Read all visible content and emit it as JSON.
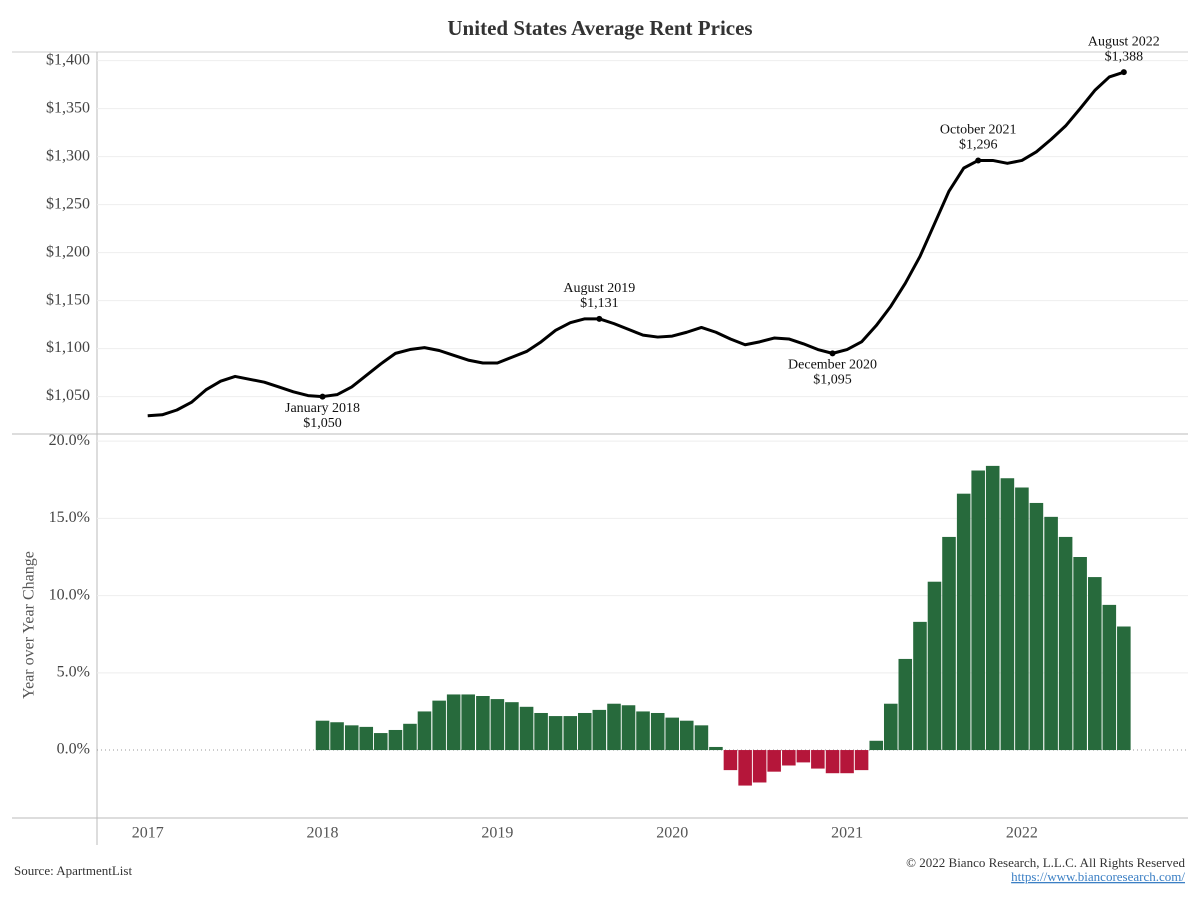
{
  "chart_data": [
    {
      "type": "line",
      "title": "United States Average Rent Prices",
      "color": "#000000",
      "x": [
        2017,
        2017.083,
        2017.167,
        2017.25,
        2017.333,
        2017.417,
        2017.5,
        2017.583,
        2017.667,
        2017.75,
        2017.833,
        2017.917,
        2018,
        2018.083,
        2018.167,
        2018.25,
        2018.333,
        2018.417,
        2018.5,
        2018.583,
        2018.667,
        2018.75,
        2018.833,
        2018.917,
        2019,
        2019.083,
        2019.167,
        2019.25,
        2019.333,
        2019.417,
        2019.5,
        2019.583,
        2019.667,
        2019.75,
        2019.833,
        2019.917,
        2020,
        2020.083,
        2020.167,
        2020.25,
        2020.333,
        2020.417,
        2020.5,
        2020.583,
        2020.667,
        2020.75,
        2020.833,
        2020.917,
        2021,
        2021.083,
        2021.167,
        2021.25,
        2021.333,
        2021.417,
        2021.5,
        2021.583,
        2021.667,
        2021.75,
        2021.833,
        2021.917,
        2022,
        2022.083,
        2022.167,
        2022.25,
        2022.333,
        2022.417,
        2022.5,
        2022.583
      ],
      "values": [
        1030,
        1031,
        1036,
        1044,
        1057,
        1066,
        1071,
        1068,
        1065,
        1060,
        1055,
        1051,
        1050,
        1052,
        1060,
        1072,
        1084,
        1095,
        1099,
        1101,
        1098,
        1093,
        1088,
        1085,
        1085,
        1091,
        1097,
        1107,
        1119,
        1127,
        1131,
        1131,
        1126,
        1120,
        1114,
        1112,
        1113,
        1117,
        1122,
        1117,
        1110,
        1104,
        1107,
        1111,
        1110,
        1105,
        1099,
        1095,
        1099,
        1107,
        1124,
        1144,
        1168,
        1196,
        1230,
        1264,
        1288,
        1296,
        1296,
        1293,
        1296,
        1305,
        1318,
        1332,
        1350,
        1369,
        1383,
        1388
      ],
      "ylim": [
        1011,
        1409
      ],
      "yticks": [
        {
          "value": 1050,
          "label": "$1,050"
        },
        {
          "value": 1100,
          "label": "$1,100"
        },
        {
          "value": 1150,
          "label": "$1,150"
        },
        {
          "value": 1200,
          "label": "$1,200"
        },
        {
          "value": 1250,
          "label": "$1,250"
        },
        {
          "value": 1300,
          "label": "$1,300"
        },
        {
          "value": 1350,
          "label": "$1,350"
        },
        {
          "value": 1400,
          "label": "$1,400"
        }
      ],
      "xlim": [
        2016.71,
        2022.95
      ],
      "grid": true,
      "annotations": [
        {
          "text": "January 2018",
          "x": 2018,
          "value": 1050,
          "value_label": "$1,050",
          "position": "below"
        },
        {
          "text": "August 2019",
          "x": 2019.583,
          "value": 1131,
          "value_label": "$1,131",
          "position": "above"
        },
        {
          "text": "December 2020",
          "x": 2020.917,
          "value": 1095,
          "value_label": "$1,095",
          "position": "below"
        },
        {
          "text": "October 2021",
          "x": 2021.75,
          "value": 1296,
          "value_label": "$1,296",
          "position": "above"
        },
        {
          "text": "August 2022",
          "x": 2022.583,
          "value": 1388,
          "value_label": "$1,388",
          "position": "above"
        }
      ]
    },
    {
      "type": "bar",
      "y_label": "Year over Year Change",
      "positive_color": "#276a3c",
      "negative_color": "#b5163a",
      "x": [
        2018,
        2018.083,
        2018.167,
        2018.25,
        2018.333,
        2018.417,
        2018.5,
        2018.583,
        2018.667,
        2018.75,
        2018.833,
        2018.917,
        2019,
        2019.083,
        2019.167,
        2019.25,
        2019.333,
        2019.417,
        2019.5,
        2019.583,
        2019.667,
        2019.75,
        2019.833,
        2019.917,
        2020,
        2020.083,
        2020.167,
        2020.25,
        2020.333,
        2020.417,
        2020.5,
        2020.583,
        2020.667,
        2020.75,
        2020.833,
        2020.917,
        2021,
        2021.083,
        2021.167,
        2021.25,
        2021.333,
        2021.417,
        2021.5,
        2021.583,
        2021.667,
        2021.75,
        2021.833,
        2021.917,
        2022,
        2022.083,
        2022.167,
        2022.25,
        2022.333,
        2022.417,
        2022.5,
        2022.583
      ],
      "values": [
        1.9,
        1.8,
        1.6,
        1.5,
        1.1,
        1.3,
        1.7,
        2.5,
        3.2,
        3.6,
        3.6,
        3.5,
        3.3,
        3.1,
        2.8,
        2.4,
        2.2,
        2.2,
        2.4,
        2.6,
        3.0,
        2.9,
        2.5,
        2.4,
        2.1,
        1.9,
        1.6,
        0.2,
        -1.3,
        -2.3,
        -2.1,
        -1.4,
        -1.0,
        -0.8,
        -1.2,
        -1.5,
        -1.5,
        -1.3,
        0.6,
        3.0,
        5.9,
        8.3,
        10.9,
        13.8,
        16.6,
        18.1,
        18.4,
        17.6,
        17.0,
        16.0,
        15.1,
        13.8,
        12.5,
        11.2,
        9.4,
        8.0
      ],
      "ylim": [
        -4.4,
        20.4
      ],
      "yticks": [
        {
          "value": 0,
          "label": "0.0%"
        },
        {
          "value": 5,
          "label": "5.0%"
        },
        {
          "value": 10,
          "label": "10.0%"
        },
        {
          "value": 15,
          "label": "15.0%"
        },
        {
          "value": 20,
          "label": "20.0%"
        }
      ],
      "xlim": [
        2016.71,
        2022.95
      ],
      "xticks": [
        2017,
        2018,
        2019,
        2020,
        2021,
        2022
      ],
      "grid": true
    }
  ],
  "footer": {
    "source": "Source: ApartmentList",
    "copyright": "© 2022 Bianco Research, L.L.C. All Rights Reserved",
    "url": "https://www.biancoresearch.com/"
  }
}
